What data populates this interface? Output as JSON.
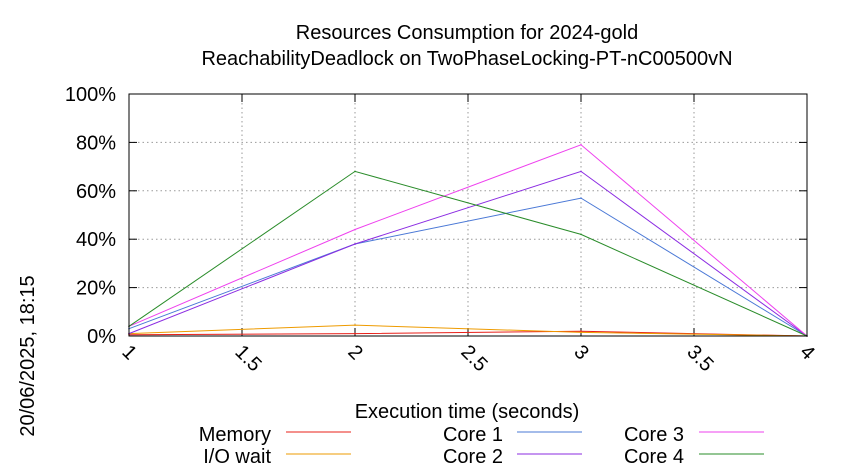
{
  "chart_data": {
    "type": "line",
    "title_line1": "Resources Consumption for 2024-gold",
    "title_line2": "ReachabilityDeadlock on TwoPhaseLocking-PT-nC00500vN",
    "xlabel": "Execution time (seconds)",
    "ylabel": "",
    "side_label": "20/06/2025, 18:15",
    "xlim": [
      1,
      4
    ],
    "ylim": [
      0,
      100
    ],
    "x_ticks": [
      "1",
      "1.5",
      "2",
      "2.5",
      "3",
      "3.5",
      "4"
    ],
    "y_ticks": [
      "0%",
      "20%",
      "40%",
      "60%",
      "80%",
      "100%"
    ],
    "grid": true,
    "legend_position": "bottom",
    "series": [
      {
        "name": "Memory",
        "color": "#e8201a",
        "x": [
          1,
          2,
          3,
          4
        ],
        "y": [
          0.5,
          1,
          2,
          0
        ]
      },
      {
        "name": "I/O wait",
        "color": "#ee9b00",
        "x": [
          1,
          2,
          3,
          4
        ],
        "y": [
          1,
          4.5,
          1.5,
          0
        ]
      },
      {
        "name": "Core 1",
        "color": "#4a78d6",
        "x": [
          1,
          2,
          3,
          4
        ],
        "y": [
          3,
          38,
          57,
          0
        ]
      },
      {
        "name": "Core 2",
        "color": "#8b2be2",
        "x": [
          1,
          2,
          3,
          4
        ],
        "y": [
          1,
          38,
          68,
          0
        ]
      },
      {
        "name": "Core 3",
        "color": "#ee40ee",
        "x": [
          1,
          2,
          3,
          4
        ],
        "y": [
          4,
          44,
          79,
          0
        ]
      },
      {
        "name": "Core 4",
        "color": "#2a8c2a",
        "x": [
          1,
          2,
          3,
          4
        ],
        "y": [
          4,
          68,
          42,
          0
        ]
      }
    ]
  }
}
